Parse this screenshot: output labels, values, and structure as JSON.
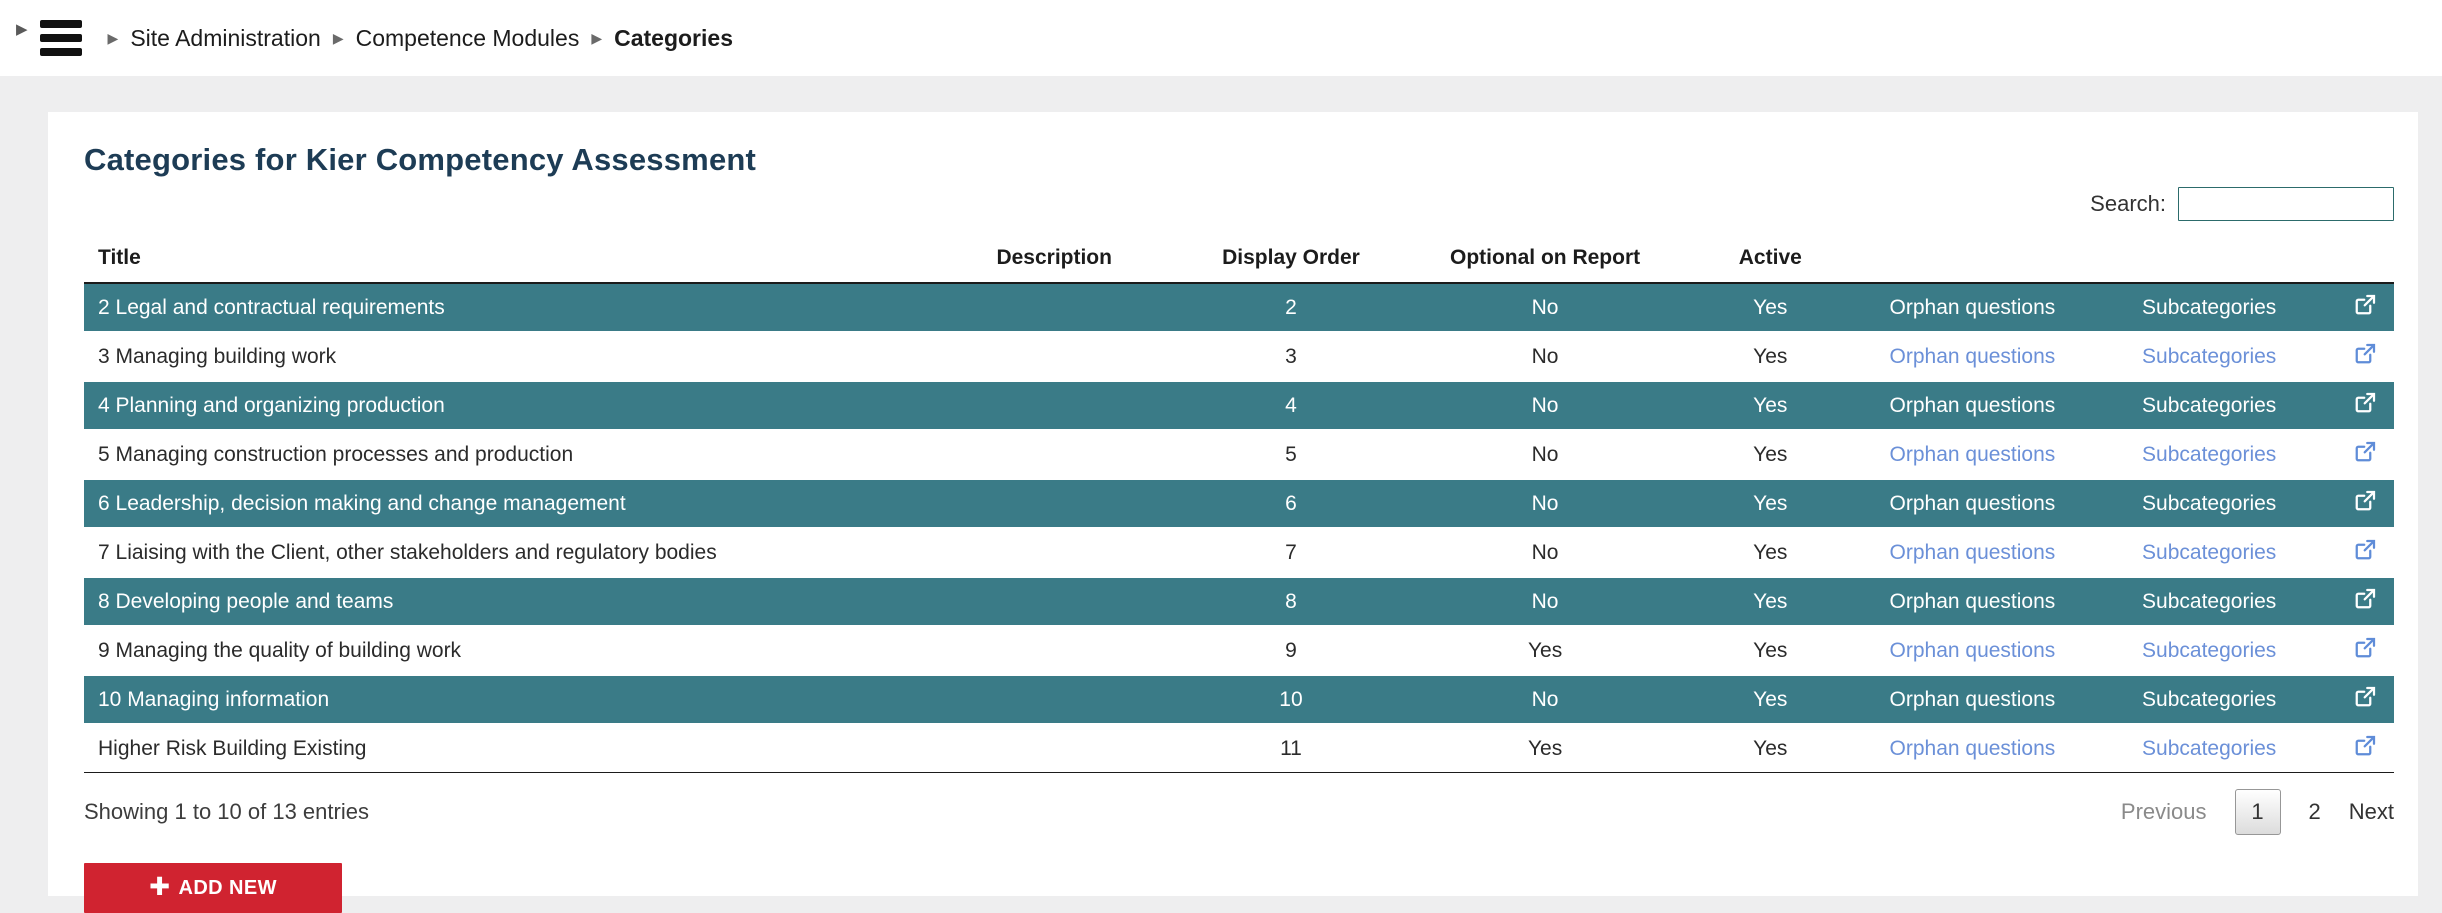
{
  "topbar": {
    "breadcrumb": [
      "Site Administration",
      "Competence Modules",
      "Categories"
    ]
  },
  "page": {
    "title": "Categories for Kier Competency Assessment"
  },
  "search": {
    "label": "Search:",
    "value": ""
  },
  "table": {
    "headers": {
      "title": "Title",
      "description": "Description",
      "display_order": "Display Order",
      "optional_on_report": "Optional on Report",
      "active": "Active"
    },
    "link_labels": {
      "orphan_questions": "Orphan questions",
      "subcategories": "Subcategories"
    },
    "rows": [
      {
        "title": "2 Legal and contractual requirements",
        "description": "",
        "display_order": "2",
        "optional_on_report": "No",
        "active": "Yes",
        "highlighted": true
      },
      {
        "title": "3 Managing building work",
        "description": "",
        "display_order": "3",
        "optional_on_report": "No",
        "active": "Yes",
        "highlighted": false
      },
      {
        "title": "4 Planning and organizing production",
        "description": "",
        "display_order": "4",
        "optional_on_report": "No",
        "active": "Yes",
        "highlighted": true
      },
      {
        "title": "5 Managing construction processes and production",
        "description": "",
        "display_order": "5",
        "optional_on_report": "No",
        "active": "Yes",
        "highlighted": false
      },
      {
        "title": "6 Leadership, decision making and change management",
        "description": "",
        "display_order": "6",
        "optional_on_report": "No",
        "active": "Yes",
        "highlighted": true
      },
      {
        "title": "7 Liaising with the Client, other stakeholders and regulatory bodies",
        "description": "",
        "display_order": "7",
        "optional_on_report": "No",
        "active": "Yes",
        "highlighted": false
      },
      {
        "title": "8 Developing people and teams",
        "description": "",
        "display_order": "8",
        "optional_on_report": "No",
        "active": "Yes",
        "highlighted": true
      },
      {
        "title": "9 Managing the quality of building work",
        "description": "",
        "display_order": "9",
        "optional_on_report": "Yes",
        "active": "Yes",
        "highlighted": false
      },
      {
        "title": "10 Managing information",
        "description": "",
        "display_order": "10",
        "optional_on_report": "No",
        "active": "Yes",
        "highlighted": true
      },
      {
        "title": "Higher Risk Building Existing",
        "description": "",
        "display_order": "11",
        "optional_on_report": "Yes",
        "active": "Yes",
        "highlighted": false
      }
    ]
  },
  "footer": {
    "summary": "Showing 1 to 10 of 13 entries"
  },
  "pagination": {
    "previous": "Previous",
    "pages": [
      {
        "label": "1",
        "current": true
      },
      {
        "label": "2",
        "current": false
      }
    ],
    "next": "Next"
  },
  "actions": {
    "add_new": "ADD NEW"
  },
  "colors": {
    "row_highlight_teal": "#3a7b87",
    "link_blue": "#6b90d8",
    "button_red": "#d02330",
    "heading_navy": "#1d3c55",
    "page_background": "#eeeeef"
  }
}
